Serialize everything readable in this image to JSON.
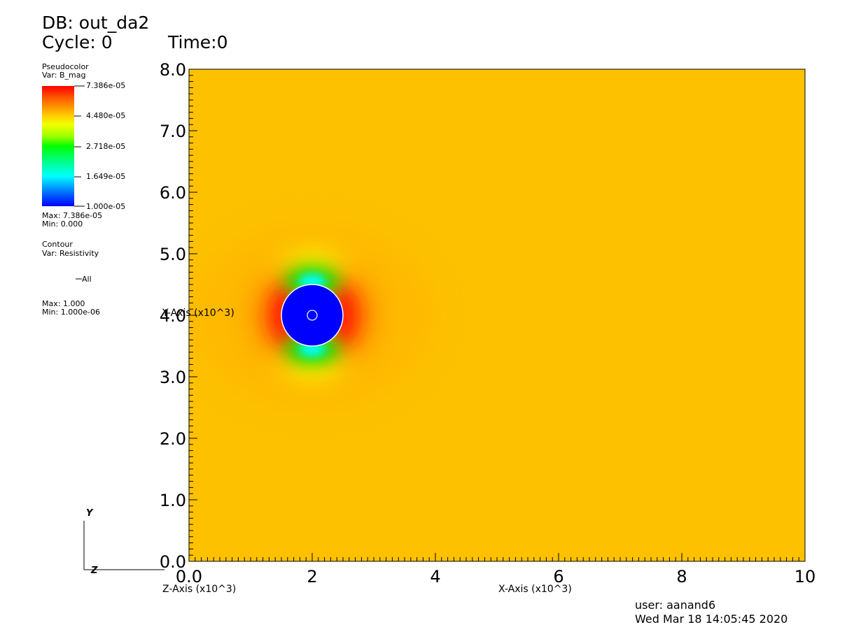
{
  "header": {
    "db_label": "DB: out_da2",
    "cycle_label": "Cycle: 0",
    "time_label": "Time:0"
  },
  "legend": {
    "pseudocolor": {
      "title": "Pseudocolor",
      "var": "Var: B_mag",
      "ticks": [
        "7.386e-05",
        "4.480e-05",
        "2.718e-05",
        "1.649e-05",
        "1.000e-05"
      ],
      "max": "Max:  7.386e-05",
      "min": "Min:  0.000"
    },
    "contour": {
      "title": "Contour",
      "var": "Var: Resistivity",
      "entry": "All",
      "max": "Max:  1.000",
      "min": "Min:  1.000e-06"
    }
  },
  "triad": {
    "y": "Y",
    "z": "Z"
  },
  "footer": {
    "user": "user: aanand6",
    "timestamp": "Wed Mar 18 14:05:45 2020"
  },
  "colors": {
    "background_field": "#fdc100",
    "circle": "#0000ff",
    "max_red": "#ff1a00"
  },
  "chart_data": {
    "type": "heatmap",
    "title": "",
    "xlabel": "X-Axis (x10^3)",
    "ylabel": "Y-Axis (x10^3)",
    "zlabel": "Z-Axis (x10^3)",
    "xlim": [
      0,
      10
    ],
    "ylim": [
      0,
      8
    ],
    "x_ticks": [
      {
        "value": 0,
        "label": "0.0"
      },
      {
        "value": 2,
        "label": "2"
      },
      {
        "value": 4,
        "label": "4"
      },
      {
        "value": 6,
        "label": "6"
      },
      {
        "value": 8,
        "label": "8"
      },
      {
        "value": 10,
        "label": "10"
      }
    ],
    "y_ticks": [
      {
        "value": 0,
        "label": "0.0"
      },
      {
        "value": 1,
        "label": "1.0"
      },
      {
        "value": 2,
        "label": "2.0"
      },
      {
        "value": 3,
        "label": "3.0"
      },
      {
        "value": 4,
        "label": "4.0"
      },
      {
        "value": 5,
        "label": "5.0"
      },
      {
        "value": 6,
        "label": "6.0"
      },
      {
        "value": 7,
        "label": "7.0"
      },
      {
        "value": 8,
        "label": "8.0"
      }
    ],
    "variable": "B_mag",
    "colorbar_range": [
      1e-05,
      7.386e-05
    ],
    "features": {
      "low_field_disk": {
        "center": [
          2.0,
          4.0
        ],
        "radius": 0.5,
        "value": 1e-05
      },
      "inner_contour_ring": {
        "center": [
          2.0,
          4.0
        ],
        "radius": 0.08
      },
      "max_lobes": [
        {
          "center": [
            1.55,
            4.0
          ],
          "value": 7.386e-05
        },
        {
          "center": [
            2.5,
            4.0
          ],
          "value": 7.386e-05
        }
      ],
      "min_lobes": [
        {
          "center": [
            2.0,
            4.55
          ],
          "value": 1e-05
        },
        {
          "center": [
            2.0,
            3.45
          ],
          "value": 1e-05
        }
      ],
      "background_value": 5.6e-05
    }
  }
}
